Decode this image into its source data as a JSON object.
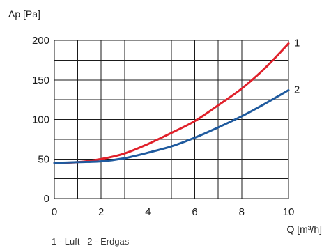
{
  "chart_data": {
    "type": "line",
    "ylabel": "Δp [Pa]",
    "xlabel": "Q [m³/h]",
    "xlim": [
      0,
      10
    ],
    "ylim": [
      0,
      200
    ],
    "x_ticks": [
      {
        "value": 0,
        "label": "0"
      },
      {
        "value": 2,
        "label": "2"
      },
      {
        "value": 4,
        "label": "4"
      },
      {
        "value": 6,
        "label": "6"
      },
      {
        "value": 8,
        "label": "8"
      },
      {
        "value": 10,
        "label": "10"
      }
    ],
    "y_ticks": [
      {
        "value": 0,
        "label": "0"
      },
      {
        "value": 50,
        "label": "50"
      },
      {
        "value": 100,
        "label": "100"
      },
      {
        "value": 150,
        "label": "150"
      },
      {
        "value": 200,
        "label": "200"
      }
    ],
    "x_grid_step": 1,
    "y_grid_step": 25,
    "grid": true,
    "legend_text": "1 - Luft   2 - Erdgas",
    "series": [
      {
        "name": "1",
        "color": "#e0202a",
        "x": [
          0,
          1,
          2,
          3,
          4,
          5,
          6,
          7,
          8,
          9,
          10
        ],
        "y": [
          45,
          46,
          50,
          57,
          69,
          83,
          98,
          118,
          139,
          165,
          196
        ]
      },
      {
        "name": "2",
        "color": "#1f5a9e",
        "x": [
          0,
          1,
          2,
          3,
          4,
          5,
          6,
          7,
          8,
          9,
          10
        ],
        "y": [
          45,
          46,
          47,
          51,
          58,
          66,
          77,
          90,
          104,
          120,
          137
        ]
      }
    ]
  }
}
